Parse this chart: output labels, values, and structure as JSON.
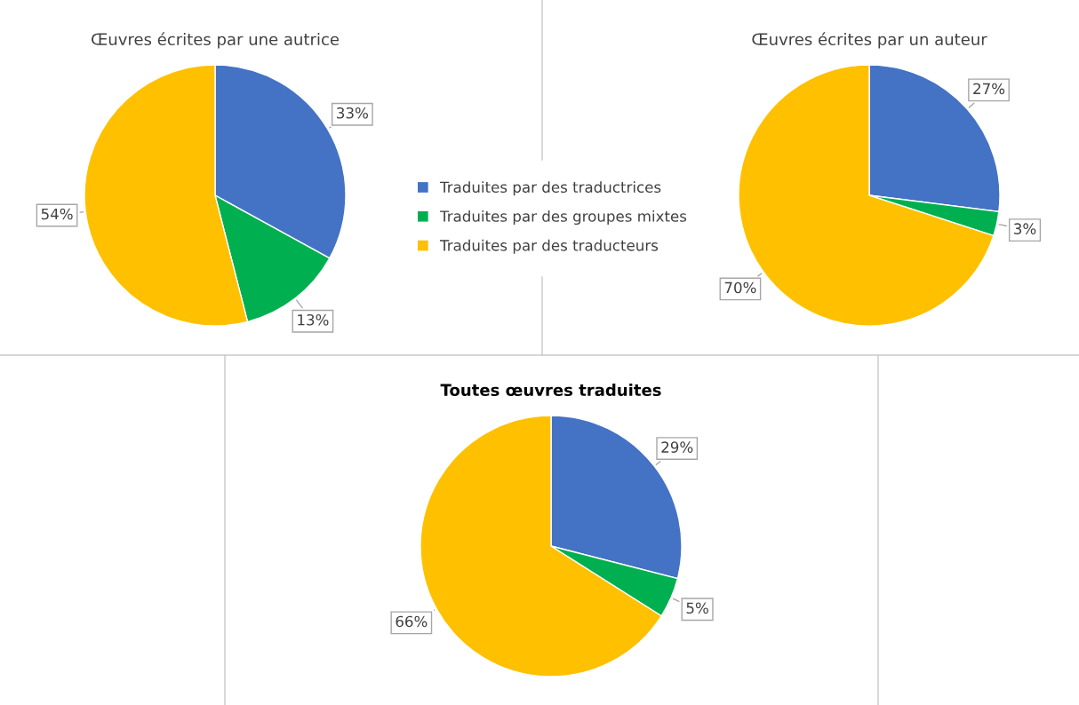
{
  "chart_data": [
    {
      "type": "pie",
      "title": "Œuvres écrites par une autrice",
      "categories": [
        "Traduites par des traductrices",
        "Traduites par des groupes mixtes",
        "Traduites par des traducteurs"
      ],
      "values": [
        33,
        13,
        54
      ],
      "colors": [
        "#4472c4",
        "#00b050",
        "#ffc000"
      ],
      "value_labels": [
        "33%",
        "13%",
        "54%"
      ],
      "legend": "right"
    },
    {
      "type": "pie",
      "title": "Œuvres écrites par un auteur",
      "categories": [
        null,
        null,
        null
      ],
      "values": [
        27,
        3,
        70
      ],
      "colors": [
        "#4472c4",
        "#00b050",
        "#ffc000"
      ],
      "value_labels": [
        "27%",
        "3%",
        "70%"
      ]
    },
    {
      "type": "pie",
      "title": "Toutes œuvres traduites",
      "categories": [
        null,
        null,
        null
      ],
      "values": [
        29,
        5,
        66
      ],
      "colors": [
        "#4472c4",
        "#00b050",
        "#ffc000"
      ],
      "value_labels": [
        "29%",
        "5%",
        "66%"
      ]
    }
  ]
}
